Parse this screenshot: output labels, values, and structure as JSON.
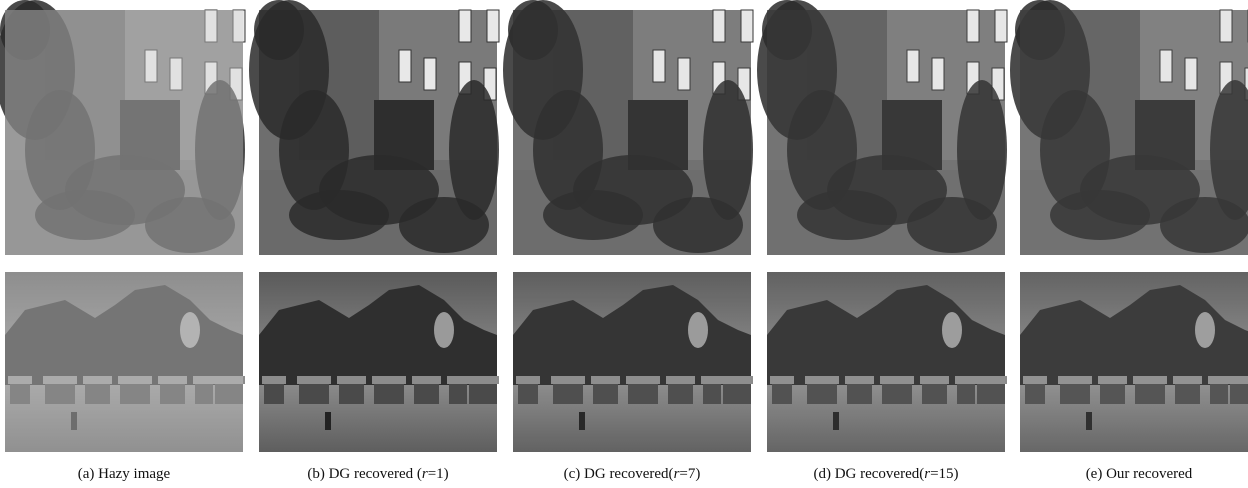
{
  "panels": [
    {
      "caption": [
        "(a) Hazy image"
      ]
    },
    {
      "caption": [
        "(b) DG recovered (",
        "r",
        "=1)"
      ]
    },
    {
      "caption": [
        "(c) DG recovered(",
        "r",
        "=7)"
      ]
    },
    {
      "caption": [
        "(d) DG recovered(",
        "r",
        "=15)"
      ]
    },
    {
      "caption": [
        "(e) Our recovered"
      ]
    }
  ]
}
